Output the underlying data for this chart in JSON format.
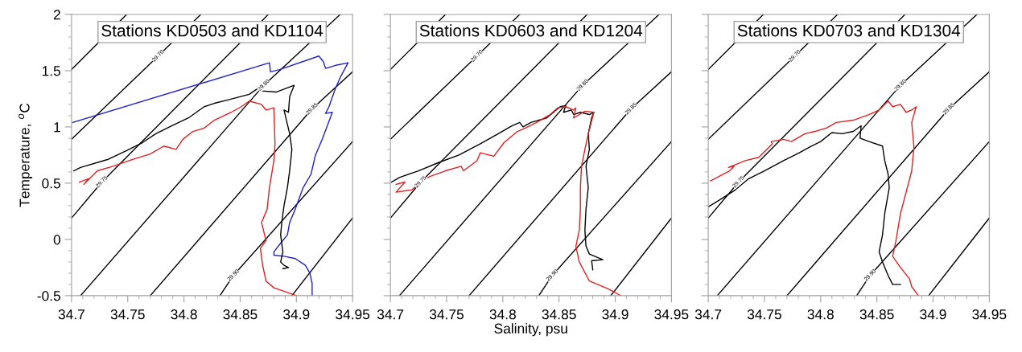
{
  "chart_data": [
    {
      "type": "line",
      "title": "Stations KD0503 and KD1104",
      "ylabel": "Temperature, $^{o}$C",
      "xlim": [
        34.7,
        34.95
      ],
      "ylim": [
        -0.5,
        2
      ],
      "xticks": [
        34.7,
        34.75,
        34.8,
        34.85,
        34.9,
        34.95
      ],
      "yticks": [
        -0.5,
        0,
        0.5,
        1,
        1.5,
        2
      ],
      "annotations": [
        {
          "text": "29.70",
          "x": 34.777,
          "y": 1.63
        },
        {
          "text": "29.75",
          "x": 34.727,
          "y": 0.51
        },
        {
          "text": "29.80",
          "x": 34.871,
          "y": 1.37
        },
        {
          "text": "29.85",
          "x": 34.914,
          "y": 1.16
        },
        {
          "text": "29.90",
          "x": 34.844,
          "y": -0.32
        }
      ],
      "series": [
        {
          "color": "#000000",
          "x": [
            34.7,
            34.749
          ],
          "values": [
            1.51,
            2.0
          ]
        },
        {
          "color": "#000000",
          "x": [
            34.7,
            34.777,
            34.815
          ],
          "values": [
            0.89,
            1.63,
            2.0
          ]
        },
        {
          "color": "#000000",
          "x": [
            34.7,
            34.727,
            34.875
          ],
          "values": [
            0.19,
            0.51,
            2.0
          ]
        },
        {
          "color": "#000000",
          "x": [
            34.708,
            34.871,
            34.939
          ],
          "values": [
            -0.5,
            1.37,
            2.0
          ]
        },
        {
          "color": "#000000",
          "x": [
            34.77,
            34.914,
            34.95
          ],
          "values": [
            -0.5,
            1.16,
            1.49
          ]
        },
        {
          "color": "#000000",
          "x": [
            34.832,
            34.844,
            34.95
          ],
          "values": [
            -0.5,
            -0.32,
            0.87
          ]
        },
        {
          "color": "#000000",
          "x": [
            34.896,
            34.95
          ],
          "values": [
            -0.5,
            0.19
          ]
        },
        {
          "color": "#2020c8",
          "x": [
            34.701,
            34.876,
            34.877,
            34.885,
            34.92,
            34.924,
            34.926,
            34.936,
            34.946,
            34.94,
            34.935,
            34.929,
            34.926,
            34.932,
            34.923,
            34.917,
            34.913,
            34.906,
            34.899,
            34.894,
            34.892,
            34.887,
            34.88,
            34.88,
            34.889,
            34.899,
            34.908,
            34.912,
            34.914,
            34.914
          ],
          "values": [
            1.04,
            1.57,
            1.49,
            1.51,
            1.63,
            1.58,
            1.52,
            1.55,
            1.57,
            1.46,
            1.35,
            1.18,
            1.12,
            1.13,
            0.89,
            0.75,
            0.58,
            0.46,
            0.27,
            0.15,
            0.04,
            -0.02,
            -0.11,
            -0.14,
            -0.15,
            -0.17,
            -0.23,
            -0.3,
            -0.39,
            -0.5
          ]
        },
        {
          "color": "#000000",
          "x": [
            34.702,
            34.708,
            34.732,
            34.749,
            34.763,
            34.775,
            34.789,
            34.804,
            34.818,
            34.827,
            34.839,
            34.858,
            34.867,
            34.869,
            34.882,
            34.898,
            34.894,
            34.893,
            34.889,
            34.894,
            34.896,
            34.894,
            34.892,
            34.889,
            34.887,
            34.886,
            34.888,
            34.886,
            34.889,
            34.893,
            34.888
          ],
          "values": [
            0.61,
            0.64,
            0.71,
            0.79,
            0.86,
            0.94,
            1.01,
            1.08,
            1.18,
            1.21,
            1.24,
            1.29,
            1.35,
            1.32,
            1.31,
            1.37,
            1.27,
            1.13,
            1.15,
            0.94,
            0.8,
            0.61,
            0.46,
            0.3,
            0.15,
            0.04,
            -0.11,
            -0.2,
            -0.23,
            -0.25,
            -0.26
          ]
        },
        {
          "color": "#e02020",
          "x": [
            34.707,
            34.715,
            34.711,
            34.723,
            34.737,
            34.751,
            34.77,
            34.782,
            34.793,
            34.799,
            34.808,
            34.818,
            34.827,
            34.842,
            34.851,
            34.858,
            34.869,
            34.873,
            34.88,
            34.881,
            34.88,
            34.876,
            34.874,
            34.869,
            34.873,
            34.868,
            34.87,
            34.873,
            34.88,
            34.889,
            34.9
          ],
          "values": [
            0.51,
            0.54,
            0.49,
            0.61,
            0.65,
            0.7,
            0.76,
            0.83,
            0.8,
            0.89,
            0.96,
            0.99,
            1.06,
            1.13,
            1.18,
            1.23,
            1.2,
            1.15,
            1.17,
            0.85,
            0.7,
            0.46,
            0.27,
            0.15,
            -0.01,
            -0.08,
            -0.23,
            -0.37,
            -0.43,
            -0.46,
            -0.5
          ]
        }
      ]
    },
    {
      "type": "line",
      "title": "Stations KD0603 and KD1204",
      "xlabel": "Salinity, psu",
      "xlim": [
        34.7,
        34.95
      ],
      "ylim": [
        -0.5,
        2
      ],
      "xticks": [
        34.7,
        34.75,
        34.8,
        34.85,
        34.9,
        34.95
      ],
      "yticks": [
        -0.5,
        0,
        0.5,
        1,
        1.5,
        2
      ],
      "tick_labels": "x",
      "annotations": [
        {
          "text": "29.70",
          "x": 34.777,
          "y": 1.63
        },
        {
          "text": "29.75",
          "x": 34.727,
          "y": 0.51
        },
        {
          "text": "29.80",
          "x": 34.871,
          "y": 1.37
        },
        {
          "text": "29.85",
          "x": 34.914,
          "y": 1.16
        },
        {
          "text": "29.90",
          "x": 34.844,
          "y": -0.32
        }
      ],
      "series": [
        {
          "color": "#000000",
          "x": [
            34.7,
            34.749
          ],
          "values": [
            1.51,
            2.0
          ]
        },
        {
          "color": "#000000",
          "x": [
            34.7,
            34.777,
            34.815
          ],
          "values": [
            0.89,
            1.63,
            2.0
          ]
        },
        {
          "color": "#000000",
          "x": [
            34.7,
            34.727,
            34.875
          ],
          "values": [
            0.19,
            0.51,
            2.0
          ]
        },
        {
          "color": "#000000",
          "x": [
            34.708,
            34.871,
            34.939
          ],
          "values": [
            -0.5,
            1.37,
            2.0
          ]
        },
        {
          "color": "#000000",
          "x": [
            34.77,
            34.914,
            34.95
          ],
          "values": [
            -0.5,
            1.16,
            1.49
          ]
        },
        {
          "color": "#000000",
          "x": [
            34.832,
            34.844,
            34.95
          ],
          "values": [
            -0.5,
            -0.32,
            0.87
          ]
        },
        {
          "color": "#000000",
          "x": [
            34.896,
            34.95
          ],
          "values": [
            -0.5,
            0.19
          ]
        },
        {
          "color": "#000000",
          "x": [
            34.701,
            34.708,
            34.725,
            34.742,
            34.761,
            34.78,
            34.796,
            34.808,
            34.815,
            34.818,
            34.825,
            34.839,
            34.851,
            34.856,
            34.854,
            34.861,
            34.863,
            34.869,
            34.877,
            34.881,
            34.879,
            34.876,
            34.877,
            34.874,
            34.876,
            34.874,
            34.873,
            34.874,
            34.877,
            34.889,
            34.879,
            34.88
          ],
          "values": [
            0.51,
            0.55,
            0.61,
            0.68,
            0.75,
            0.85,
            0.94,
            1.01,
            1.04,
            1.0,
            1.04,
            1.08,
            1.18,
            1.19,
            1.13,
            1.15,
            1.11,
            1.13,
            1.11,
            1.13,
            1.08,
            0.94,
            0.8,
            0.65,
            0.46,
            0.27,
            0.08,
            -0.06,
            -0.13,
            -0.18,
            -0.19,
            -0.27
          ]
        },
        {
          "color": "#e02020",
          "x": [
            34.705,
            34.713,
            34.705,
            34.719,
            34.725,
            34.735,
            34.749,
            34.763,
            34.765,
            34.777,
            34.78,
            34.792,
            34.801,
            34.813,
            34.82,
            34.83,
            34.842,
            34.849,
            34.856,
            34.863,
            34.865,
            34.863,
            34.873,
            34.881,
            34.876,
            34.873,
            34.87,
            34.869,
            34.869,
            34.868,
            34.865,
            34.868,
            34.877,
            34.894,
            34.905
          ],
          "values": [
            0.49,
            0.51,
            0.42,
            0.44,
            0.49,
            0.56,
            0.61,
            0.65,
            0.61,
            0.7,
            0.77,
            0.74,
            0.86,
            0.96,
            0.99,
            1.04,
            1.11,
            1.17,
            1.18,
            1.15,
            1.17,
            1.08,
            1.14,
            1.13,
            0.94,
            0.8,
            0.65,
            0.46,
            0.27,
            0.08,
            -0.06,
            -0.2,
            -0.37,
            -0.44,
            -0.5
          ]
        }
      ]
    },
    {
      "type": "line",
      "title": "Stations KD0703 and KD1304",
      "xlim": [
        34.7,
        34.95
      ],
      "ylim": [
        -0.5,
        2
      ],
      "xticks": [
        34.7,
        34.75,
        34.8,
        34.85,
        34.9,
        34.95
      ],
      "yticks": [
        -0.5,
        0,
        0.5,
        1,
        1.5,
        2
      ],
      "tick_labels": "x",
      "annotations": [
        {
          "text": "29.70",
          "x": 34.777,
          "y": 1.63
        },
        {
          "text": "29.75",
          "x": 34.727,
          "y": 0.51
        },
        {
          "text": "29.80",
          "x": 34.871,
          "y": 1.37
        },
        {
          "text": "29.85",
          "x": 34.914,
          "y": 1.16
        },
        {
          "text": "29.90",
          "x": 34.844,
          "y": -0.32
        }
      ],
      "series": [
        {
          "color": "#000000",
          "x": [
            34.7,
            34.749
          ],
          "values": [
            1.51,
            2.0
          ]
        },
        {
          "color": "#000000",
          "x": [
            34.7,
            34.777,
            34.815
          ],
          "values": [
            0.89,
            1.63,
            2.0
          ]
        },
        {
          "color": "#000000",
          "x": [
            34.7,
            34.727,
            34.875
          ],
          "values": [
            0.19,
            0.51,
            2.0
          ]
        },
        {
          "color": "#000000",
          "x": [
            34.708,
            34.871,
            34.939
          ],
          "values": [
            -0.5,
            1.37,
            2.0
          ]
        },
        {
          "color": "#000000",
          "x": [
            34.77,
            34.914,
            34.95
          ],
          "values": [
            -0.5,
            1.16,
            1.49
          ]
        },
        {
          "color": "#000000",
          "x": [
            34.832,
            34.844,
            34.95
          ],
          "values": [
            -0.5,
            -0.32,
            0.87
          ]
        },
        {
          "color": "#000000",
          "x": [
            34.896,
            34.95
          ],
          "values": [
            -0.5,
            0.19
          ]
        },
        {
          "color": "#e02020",
          "x": [
            34.702,
            34.719,
            34.723,
            34.718,
            34.733,
            34.745,
            34.752,
            34.757,
            34.756,
            34.767,
            34.774,
            34.786,
            34.795,
            34.805,
            34.814,
            34.829,
            34.843,
            34.852,
            34.86,
            34.864,
            34.871,
            34.876,
            34.881,
            34.885,
            34.881,
            34.883,
            34.881,
            34.876,
            34.871,
            34.867,
            34.864,
            34.871,
            34.879,
            34.881,
            34.887
          ],
          "values": [
            0.52,
            0.61,
            0.65,
            0.64,
            0.7,
            0.73,
            0.8,
            0.85,
            0.87,
            0.89,
            0.87,
            0.94,
            0.96,
            0.99,
            1.04,
            1.06,
            1.11,
            1.15,
            1.23,
            1.18,
            1.2,
            1.13,
            1.15,
            1.18,
            1.04,
            0.82,
            0.61,
            0.42,
            0.23,
            -0.01,
            -0.15,
            -0.25,
            -0.35,
            -0.42,
            -0.5
          ]
        },
        {
          "color": "#000000",
          "x": [
            34.7,
            34.71,
            34.724,
            34.736,
            34.75,
            34.767,
            34.781,
            34.79,
            34.8,
            34.81,
            34.819,
            34.829,
            34.836,
            34.835,
            34.843,
            34.855,
            34.857,
            34.86,
            34.861,
            34.857,
            34.855,
            34.852,
            34.855,
            34.86,
            34.864,
            34.871
          ],
          "values": [
            0.29,
            0.35,
            0.44,
            0.54,
            0.61,
            0.7,
            0.77,
            0.82,
            0.87,
            0.95,
            0.94,
            0.96,
            1.01,
            0.9,
            0.87,
            0.83,
            0.7,
            0.58,
            0.46,
            0.23,
            0.04,
            -0.11,
            -0.2,
            -0.32,
            -0.4,
            -0.4
          ]
        }
      ]
    }
  ]
}
